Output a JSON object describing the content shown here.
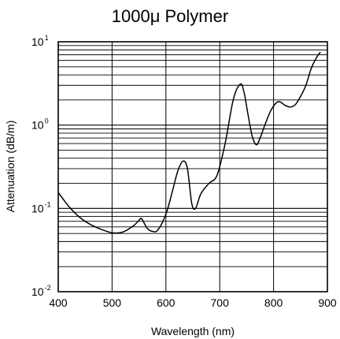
{
  "chart_data": {
    "type": "line",
    "title": "1000μ Polymer",
    "xlabel": "Wavelength (nm)",
    "ylabel": "Attenuation (dB/m)",
    "xlim": [
      400,
      900
    ],
    "ylim": [
      0.01,
      10
    ],
    "yscale": "log",
    "grid": true,
    "legend": "none",
    "x_ticks": [
      "400",
      "500",
      "600",
      "700",
      "800",
      "900"
    ],
    "y_ticks": [
      {
        "base": "10",
        "exp": "-2",
        "value": 0.01
      },
      {
        "base": "10",
        "exp": "-1",
        "value": 0.1
      },
      {
        "base": "10",
        "exp": "0",
        "value": 1
      },
      {
        "base": "10",
        "exp": "1",
        "value": 10
      }
    ],
    "series": [
      {
        "color": "#000000",
        "x": [
          400,
          420,
          440,
          460,
          480,
          500,
          520,
          540,
          550,
          555,
          565,
          575,
          585,
          600,
          612,
          622,
          632,
          640,
          648,
          655,
          665,
          680,
          695,
          710,
          725,
          738,
          745,
          752,
          760,
          768,
          775,
          785,
          795,
          805,
          812,
          820,
          830,
          840,
          850,
          860,
          870,
          880,
          887
        ],
        "y": [
          0.155,
          0.105,
          0.078,
          0.064,
          0.056,
          0.051,
          0.052,
          0.062,
          0.072,
          0.075,
          0.058,
          0.053,
          0.055,
          0.085,
          0.16,
          0.28,
          0.37,
          0.3,
          0.115,
          0.1,
          0.15,
          0.2,
          0.25,
          0.6,
          2.0,
          3.1,
          2.5,
          1.4,
          0.75,
          0.58,
          0.7,
          1.05,
          1.5,
          1.85,
          1.9,
          1.75,
          1.65,
          1.75,
          2.2,
          3.0,
          4.8,
          6.5,
          7.5
        ]
      }
    ]
  }
}
